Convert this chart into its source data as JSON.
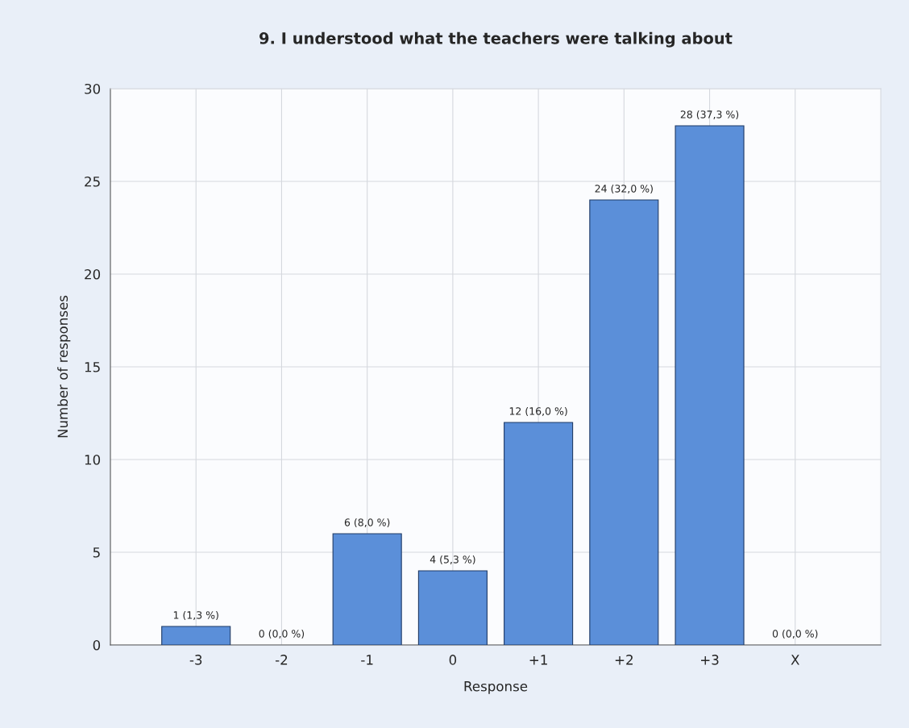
{
  "chart_data": {
    "type": "bar",
    "title": "9. I understood what the teachers were talking about",
    "xlabel": "Response",
    "ylabel": "Number of responses",
    "categories": [
      "-3",
      "-2",
      "-1",
      "0",
      "+1",
      "+2",
      "+3",
      "X"
    ],
    "values": [
      1,
      0,
      6,
      4,
      12,
      24,
      28,
      0
    ],
    "value_labels": [
      "1 (1,3 %)",
      "0 (0,0 %)",
      "6 (8,0 %)",
      "4 (5,3 %)",
      "12 (16,0 %)",
      "24 (32,0 %)",
      "28 (37,3 %)",
      "0 (0,0 %)"
    ],
    "color": "#5b8fd9",
    "ylim": [
      0,
      30
    ],
    "yticks": [
      0,
      5,
      10,
      15,
      20,
      25,
      30
    ],
    "grid": true,
    "legend": false
  }
}
